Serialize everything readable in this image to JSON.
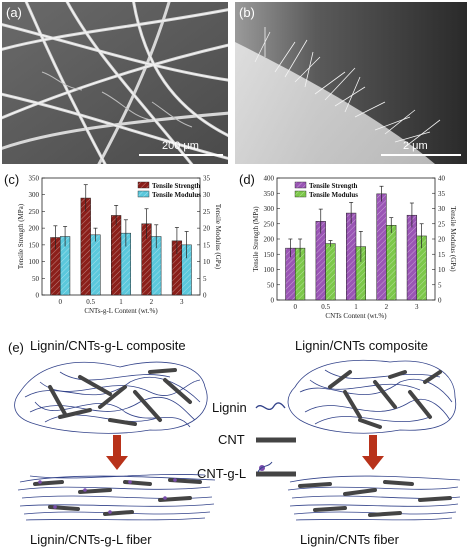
{
  "panels": {
    "a": {
      "label": "(a)",
      "scalebar": "200 μm"
    },
    "b": {
      "label": "(b)",
      "scalebar": "2 μm"
    },
    "c": {
      "label": "(c)"
    },
    "d": {
      "label": "(d)"
    },
    "e": {
      "label": "(e)"
    }
  },
  "colors": {
    "strength_c": "#8b1f1a",
    "modulus_c": "#5bc8dc",
    "strength_d": "#9a55b5",
    "modulus_d": "#7cc84a",
    "fiber_blue": "#33438a",
    "cnt_gray": "#444444",
    "arrow": "#b8321a",
    "grafted_lignin": "#7a4cad"
  },
  "chart_data": [
    {
      "type": "bar",
      "panel": "c",
      "categories": [
        "0",
        "0.5",
        "1",
        "2",
        "3"
      ],
      "xlabel": "CNTs-g-L Content (wt.%)",
      "ylabel": "Tensile Strength (MPa)",
      "y2label": "Tensile Modulus (GPa)",
      "ylim": [
        0,
        350
      ],
      "yticks": [
        "0",
        "50",
        "100",
        "150",
        "200",
        "250",
        "300",
        "350"
      ],
      "y2lim": [
        0,
        35
      ],
      "y2ticks": [
        "0",
        "5",
        "10",
        "15",
        "20",
        "25",
        "30",
        "35"
      ],
      "legend_position": "top-right",
      "series": [
        {
          "name": "Tensile Strength",
          "axis": "left",
          "values": [
            172,
            290,
            238,
            213,
            162
          ],
          "errors": [
            35,
            40,
            30,
            45,
            40
          ]
        },
        {
          "name": "Tensile Modulus",
          "axis": "right",
          "values": [
            17.5,
            18,
            18.5,
            17.5,
            15
          ],
          "errors": [
            3,
            2,
            4,
            3.5,
            4
          ]
        }
      ]
    },
    {
      "type": "bar",
      "panel": "d",
      "categories": [
        "0",
        "0.5",
        "1",
        "2",
        "3"
      ],
      "xlabel": "CNTs Content (wt.%)",
      "ylabel": "Tensile Strength (MPa)",
      "y2label": "Tensile Modulus (GPa)",
      "ylim": [
        0,
        400
      ],
      "yticks": [
        "0",
        "50",
        "100",
        "150",
        "200",
        "250",
        "300",
        "350",
        "400"
      ],
      "y2lim": [
        0,
        40
      ],
      "y2ticks": [
        "0",
        "5",
        "10",
        "15",
        "20",
        "25",
        "30",
        "35",
        "40"
      ],
      "legend_position": "top-left",
      "series": [
        {
          "name": "Tensile Strength",
          "axis": "left",
          "values": [
            170,
            258,
            285,
            348,
            278
          ],
          "errors": [
            30,
            40,
            35,
            25,
            40
          ]
        },
        {
          "name": "Tensile Modulus",
          "axis": "right",
          "values": [
            17,
            18.5,
            17.5,
            24.5,
            21
          ],
          "errors": [
            3,
            1,
            5,
            2.5,
            4
          ]
        }
      ]
    }
  ],
  "diagram": {
    "title_left": "Lignin/CNTs-g-L composite",
    "title_right": "Lignin/CNTs composite",
    "fiber_left": "Lignin/CNTs-g-L fiber",
    "fiber_right": "Lignin/CNTs fiber",
    "legend_lignin": "Lignin",
    "legend_cnt": "CNT",
    "legend_cntgl": "CNT-g-L"
  }
}
